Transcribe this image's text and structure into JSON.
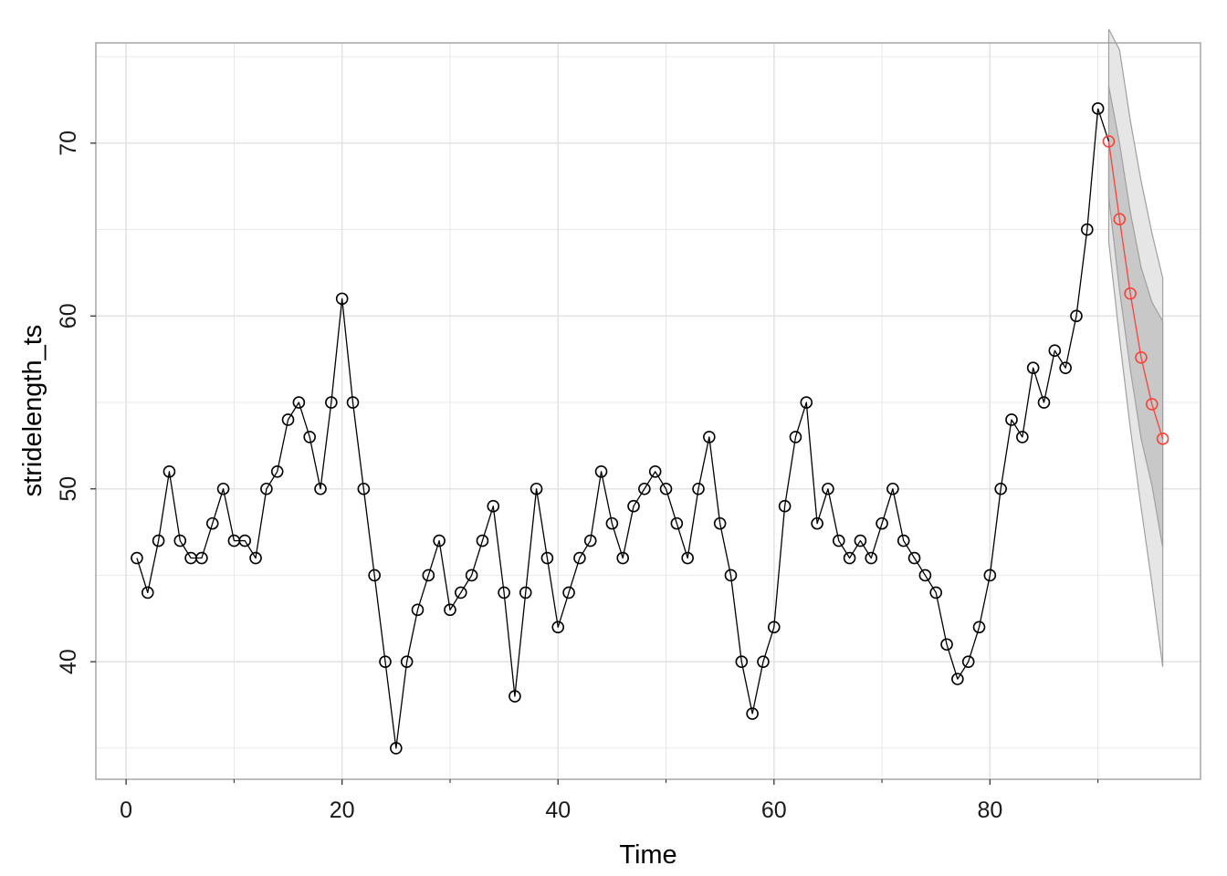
{
  "chart_data": {
    "type": "line",
    "title": "",
    "xlabel": "Time",
    "ylabel": "stridelength_ts",
    "xlim": [
      -2.8,
      99.5
    ],
    "ylim": [
      33.2,
      75.8
    ],
    "x_ticks": [
      0,
      20,
      40,
      60,
      80
    ],
    "y_ticks": [
      40,
      50,
      60,
      70
    ],
    "grid": true,
    "legend": "none",
    "colors": {
      "observed": "#000000",
      "forecast": "#f8433a",
      "band80": "#c8c8c8",
      "band95": "#e6e6e6",
      "band_edge": "#a0a0a0",
      "grid": "#e3e3e3",
      "frame": "#999999"
    },
    "series": [
      {
        "role": "observed",
        "x": [
          1,
          2,
          3,
          4,
          5,
          6,
          7,
          8,
          9,
          10,
          11,
          12,
          13,
          14,
          15,
          16,
          17,
          18,
          19,
          20,
          21,
          22,
          23,
          24,
          25,
          26,
          27,
          28,
          29,
          30,
          31,
          32,
          33,
          34,
          35,
          36,
          37,
          38,
          39,
          40,
          41,
          42,
          43,
          44,
          45,
          46,
          47,
          48,
          49,
          50,
          51,
          52,
          53,
          54,
          55,
          56,
          57,
          58,
          59,
          60,
          61,
          62,
          63,
          64,
          65,
          66,
          67,
          68,
          69,
          70,
          71,
          72,
          73,
          74,
          75,
          76,
          77,
          78,
          79,
          80,
          81,
          82,
          83,
          84,
          85,
          86,
          87,
          88,
          89,
          90
        ],
        "y": [
          46,
          44,
          47,
          51,
          47,
          46,
          46,
          48,
          50,
          47,
          47,
          46,
          50,
          51,
          54,
          55,
          53,
          50,
          55,
          61,
          55,
          50,
          45,
          40,
          35,
          40,
          43,
          45,
          47,
          43,
          44,
          45,
          47,
          49,
          44,
          38,
          44,
          50,
          46,
          42,
          44,
          46,
          47,
          51,
          48,
          46,
          49,
          50,
          51,
          50,
          48,
          46,
          50,
          53,
          48,
          45,
          40,
          37,
          40,
          42,
          49,
          53,
          55,
          48,
          50,
          47,
          46,
          47,
          46,
          48,
          50,
          47,
          46,
          45,
          44,
          41,
          39,
          40,
          42,
          45,
          50,
          54,
          53,
          57,
          55,
          58,
          57,
          60,
          65,
          72
        ]
      },
      {
        "role": "forecast",
        "x": [
          91,
          92,
          93,
          94,
          95,
          96
        ],
        "y": [
          70.1,
          65.6,
          61.3,
          57.6,
          54.9,
          52.9
        ]
      }
    ],
    "intervals": {
      "x": [
        91,
        92,
        93,
        94,
        95,
        96
      ],
      "lo80": [
        66.9,
        61.5,
        56.9,
        52.9,
        50.2,
        46.6
      ],
      "hi80": [
        73.3,
        70.0,
        66.0,
        62.8,
        60.8,
        59.7
      ],
      "lo95": [
        64.3,
        58.7,
        53.5,
        48.9,
        44.5,
        39.7
      ],
      "hi95": [
        76.6,
        75.4,
        71.3,
        67.8,
        64.8,
        62.2
      ]
    }
  }
}
